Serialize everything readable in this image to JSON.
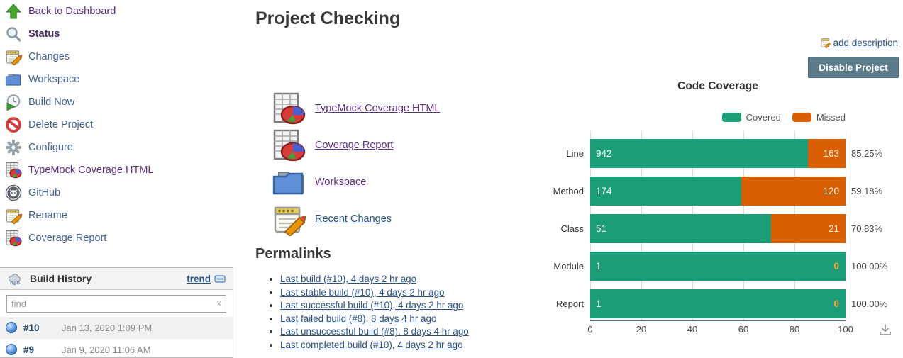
{
  "sidebar": {
    "items": [
      {
        "label": "Back to Dashboard",
        "icon": "up-arrow",
        "color": "purple"
      },
      {
        "label": "Status",
        "icon": "magnifier",
        "color": "purple",
        "bold": true
      },
      {
        "label": "Changes",
        "icon": "notepad"
      },
      {
        "label": "Workspace",
        "icon": "folder"
      },
      {
        "label": "Build Now",
        "icon": "clock-play"
      },
      {
        "label": "Delete Project",
        "icon": "no-entry"
      },
      {
        "label": "Configure",
        "icon": "gear"
      },
      {
        "label": "TypeMock Coverage HTML",
        "icon": "report-pie",
        "color": "purple"
      },
      {
        "label": "GitHub",
        "icon": "github"
      },
      {
        "label": "Rename",
        "icon": "notepad"
      },
      {
        "label": "Coverage Report",
        "icon": "report-pie"
      }
    ]
  },
  "build_history": {
    "title": "Build History",
    "trend_label": "trend",
    "search_placeholder": "find",
    "clear_label": "x",
    "builds": [
      {
        "id": "#10",
        "date": "Jan 13, 2020 1:09 PM"
      },
      {
        "id": "#9",
        "date": "Jan 9, 2020 11:06 AM"
      }
    ]
  },
  "main": {
    "title": "Project Checking",
    "links": [
      {
        "label": "TypeMock Coverage HTML",
        "icon": "report-pie",
        "visited": true
      },
      {
        "label": "Coverage Report",
        "icon": "report-pie",
        "visited": true
      },
      {
        "label": "Workspace",
        "icon": "folder",
        "visited": true
      },
      {
        "label": "Recent Changes",
        "icon": "notepad",
        "visited": false
      }
    ],
    "permalinks_title": "Permalinks",
    "permalinks": [
      "Last build (#10), 4 days 2 hr ago",
      "Last stable build (#10), 4 days 2 hr ago",
      "Last successful build (#10), 4 days 2 hr ago",
      "Last failed build (#8), 8 days 4 hr ago",
      "Last unsuccessful build (#8), 8 days 4 hr ago",
      "Last completed build (#10), 4 days 2 hr ago"
    ]
  },
  "actions": {
    "add_description": "add description",
    "disable_project": "Disable Project"
  },
  "theme": {
    "covered_green": "#1B9E77",
    "missed_orange": "#D95F02",
    "button_bg": "#5b7b8a",
    "link_blue": "#2a5286",
    "visited_purple": "#5e2e83"
  },
  "chart_data": {
    "type": "bar",
    "orientation": "horizontal",
    "stacked": true,
    "normalized_percent": true,
    "title": "Code Coverage",
    "categories": [
      "Line",
      "Method",
      "Class",
      "Module",
      "Report"
    ],
    "series": [
      {
        "name": "Covered",
        "color": "#1B9E77",
        "values": [
          942,
          174,
          51,
          1,
          1
        ]
      },
      {
        "name": "Missed",
        "color": "#D95F02",
        "values": [
          163,
          120,
          21,
          0,
          0
        ]
      }
    ],
    "covered_pct": [
      85.25,
      59.18,
      70.83,
      100.0,
      100.0
    ],
    "pct_labels": [
      "85.25%",
      "59.18%",
      "70.83%",
      "100.00%",
      "100.00%"
    ],
    "x_ticks": [
      0,
      20,
      40,
      60,
      80,
      100
    ],
    "xlim": [
      0,
      100
    ],
    "legend_position": "top-right",
    "grid": true
  }
}
